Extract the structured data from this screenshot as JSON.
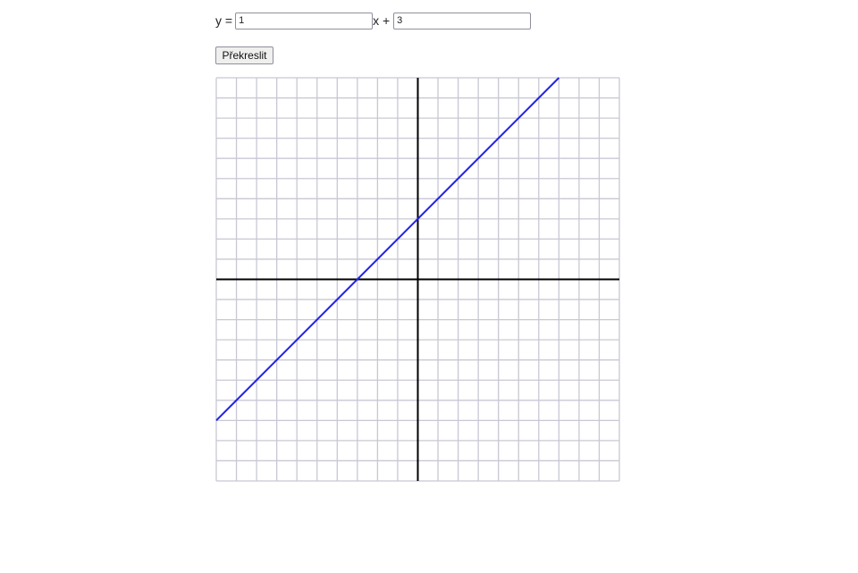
{
  "equation": {
    "prefix": "y =",
    "slope_value": "1",
    "middle": "x +",
    "intercept_value": "3"
  },
  "button": {
    "redraw_label": "Překreslit"
  },
  "chart_data": {
    "type": "line",
    "xlim": [
      -10,
      10
    ],
    "ylim": [
      -10,
      10
    ],
    "grid": true,
    "grid_step": 1,
    "series": [
      {
        "x": [
          -10,
          7
        ],
        "y": [
          -7,
          10
        ]
      }
    ]
  },
  "colors": {
    "grid": "#c8c8d4",
    "axes": "#000000",
    "line": "#2323e6"
  }
}
